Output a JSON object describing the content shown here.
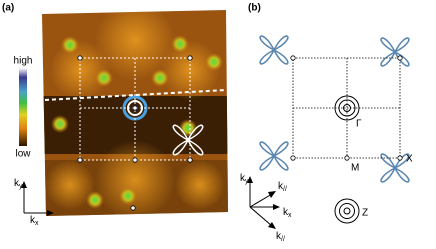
{
  "panel_a": {
    "label": "(a)",
    "colorbar": {
      "high": "high",
      "low": "low"
    },
    "axes": {
      "ky": {
        "base": "k",
        "sub": "y"
      },
      "kx": {
        "base": "k",
        "sub": "x"
      }
    }
  },
  "panel_b": {
    "label": "(b)",
    "points": {
      "gamma": "Γ",
      "m": "M",
      "x": "X",
      "z": "Z"
    },
    "axes": {
      "ky": {
        "base": "k",
        "sub": "y"
      },
      "k_par_up": {
        "base": "k",
        "sub": "//"
      },
      "kx": {
        "base": "k",
        "sub": "x"
      },
      "k_par_down": {
        "base": "k",
        "sub": "//"
      }
    }
  }
}
